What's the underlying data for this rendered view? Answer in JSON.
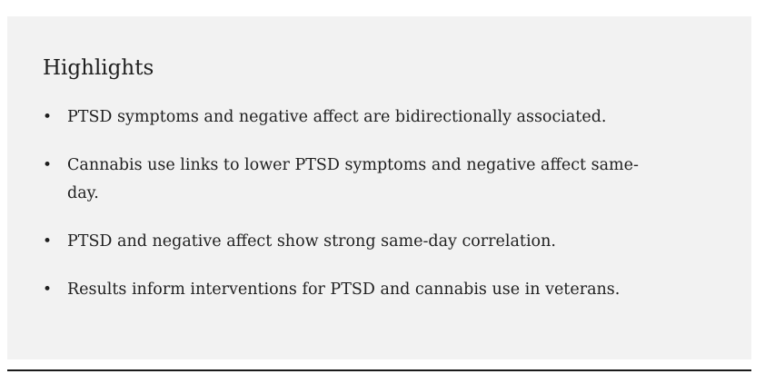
{
  "highlights": {
    "title": "Highlights",
    "bullet_glyph": "•",
    "items": [
      {
        "text": "PTSD symptoms and negative affect are bidirectionally associated."
      },
      {
        "text": "Cannabis use links to lower PTSD symptoms and negative affect same-day."
      },
      {
        "text": "PTSD and negative affect show strong same-day correlation."
      },
      {
        "text": "Results inform interventions for PTSD and cannabis use in veterans."
      }
    ]
  },
  "colors": {
    "box_background": "#f2f2f2",
    "text": "#1f1f1f",
    "rule": "#1a1a1a"
  }
}
